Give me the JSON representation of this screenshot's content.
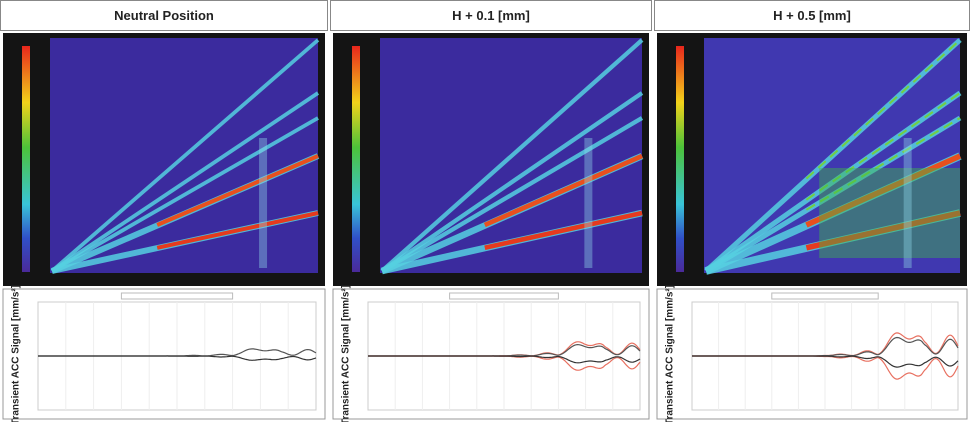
{
  "panels": [
    {
      "title": "Neutral Position",
      "y_label": "Transient ACC Signal [mm/s²]"
    },
    {
      "title": "H + 0.1 [mm]",
      "y_label": "Transient ACC Signal [mm/s²]"
    },
    {
      "title": "H + 0.5 [mm]",
      "y_label": "Transient ACC Signal [mm/s²]"
    }
  ]
}
